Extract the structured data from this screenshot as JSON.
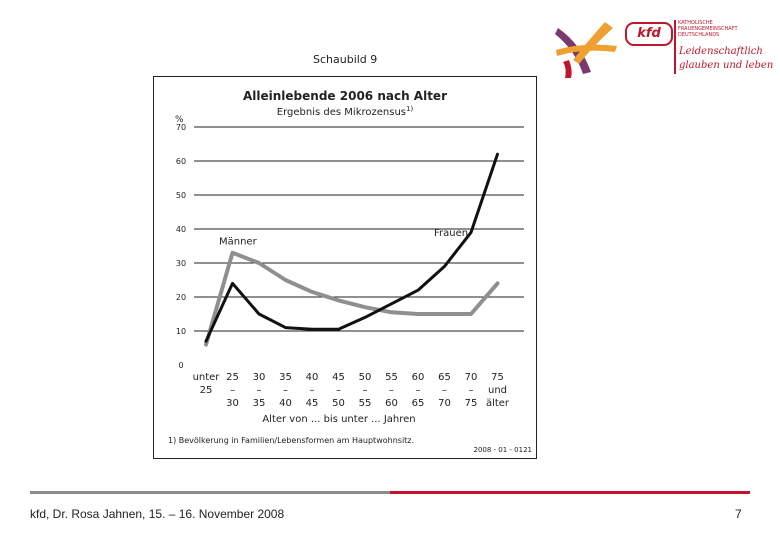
{
  "header": {
    "schaubild": "Schaubild 9",
    "logo": {
      "mark": "kfd",
      "org_lines": [
        "KATHOLISCHE",
        "FRAUENGEMEINSCHAFT",
        "DEUTSCHLANDS"
      ],
      "slogan_lines": [
        "Leidenschaftlich",
        "glauben und leben"
      ],
      "colors": {
        "red": "#c0162c",
        "orange": "#f0a030",
        "purple": "#7a3a6e"
      }
    }
  },
  "chart_data": {
    "type": "line",
    "title": "Alleinlebende 2006 nach Alter",
    "subtitle": "Ergebnis des Mikrozensus",
    "subtitle_sup": "1)",
    "ylabel": "%",
    "ylim": [
      0,
      70
    ],
    "yticks": [
      "0",
      "10",
      "20",
      "30",
      "40",
      "50",
      "60",
      "70"
    ],
    "grid": true,
    "categories_top": [
      "unter",
      "25",
      "30",
      "35",
      "40",
      "45",
      "50",
      "55",
      "60",
      "65",
      "70",
      "75"
    ],
    "categories_mid": [
      "25",
      "–",
      "–",
      "–",
      "–",
      "–",
      "–",
      "–",
      "–",
      "–",
      "–",
      "und"
    ],
    "categories_bottom": [
      "",
      "30",
      "35",
      "40",
      "45",
      "50",
      "55",
      "60",
      "65",
      "70",
      "75",
      "älter"
    ],
    "xlabel": "Alter von ... bis unter ... Jahren",
    "series": [
      {
        "name": "Frauen",
        "color": "#111111",
        "values": [
          7,
          24,
          15,
          11,
          10.5,
          10.5,
          14,
          18,
          22,
          29,
          39,
          62
        ]
      },
      {
        "name": "Männer",
        "color": "#8f8f8f",
        "values": [
          6,
          33,
          30,
          25,
          21.5,
          19,
          17,
          15.5,
          15,
          15,
          15,
          24
        ]
      }
    ],
    "footnote": "1) Bevölkerung in Familien/Lebensformen am Hauptwohnsitz.",
    "source_code": "2008 - 01 - 0121"
  },
  "footer": {
    "text": "kfd, Dr. Rosa Jahnen, 15. – 16. November 2008",
    "page": "7"
  }
}
